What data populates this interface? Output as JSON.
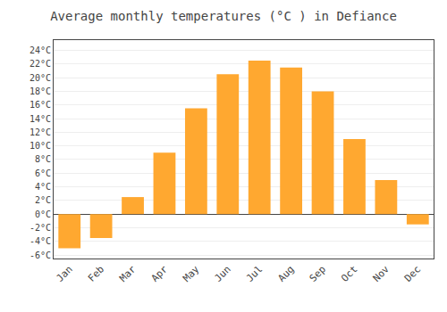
{
  "chart_data": {
    "type": "bar",
    "title": "Average monthly temperatures (°C ) in Defiance",
    "categories": [
      "Jan",
      "Feb",
      "Mar",
      "Apr",
      "May",
      "Jun",
      "Jul",
      "Aug",
      "Sep",
      "Oct",
      "Nov",
      "Dec"
    ],
    "values": [
      -5,
      -3.5,
      2.5,
      9,
      15.5,
      20.5,
      22.5,
      21.5,
      18,
      11,
      5,
      -1.5
    ],
    "color": "#FFA830",
    "ylim": [
      -6.5,
      25.5
    ],
    "yticks": [
      {
        "value": -6,
        "label": "-6°C"
      },
      {
        "value": -4,
        "label": "-4°C"
      },
      {
        "value": -2,
        "label": "-2°C"
      },
      {
        "value": 0,
        "label": "0°C"
      },
      {
        "value": 2,
        "label": "2°C"
      },
      {
        "value": 4,
        "label": "4°C"
      },
      {
        "value": 6,
        "label": "6°C"
      },
      {
        "value": 8,
        "label": "8°C"
      },
      {
        "value": 10,
        "label": "10°C"
      },
      {
        "value": 12,
        "label": "12°C"
      },
      {
        "value": 14,
        "label": "14°C"
      },
      {
        "value": 16,
        "label": "16°C"
      },
      {
        "value": 18,
        "label": "18°C"
      },
      {
        "value": 20,
        "label": "20°C"
      },
      {
        "value": 22,
        "label": "22°C"
      },
      {
        "value": 24,
        "label": "24°C"
      }
    ],
    "grid": true
  }
}
